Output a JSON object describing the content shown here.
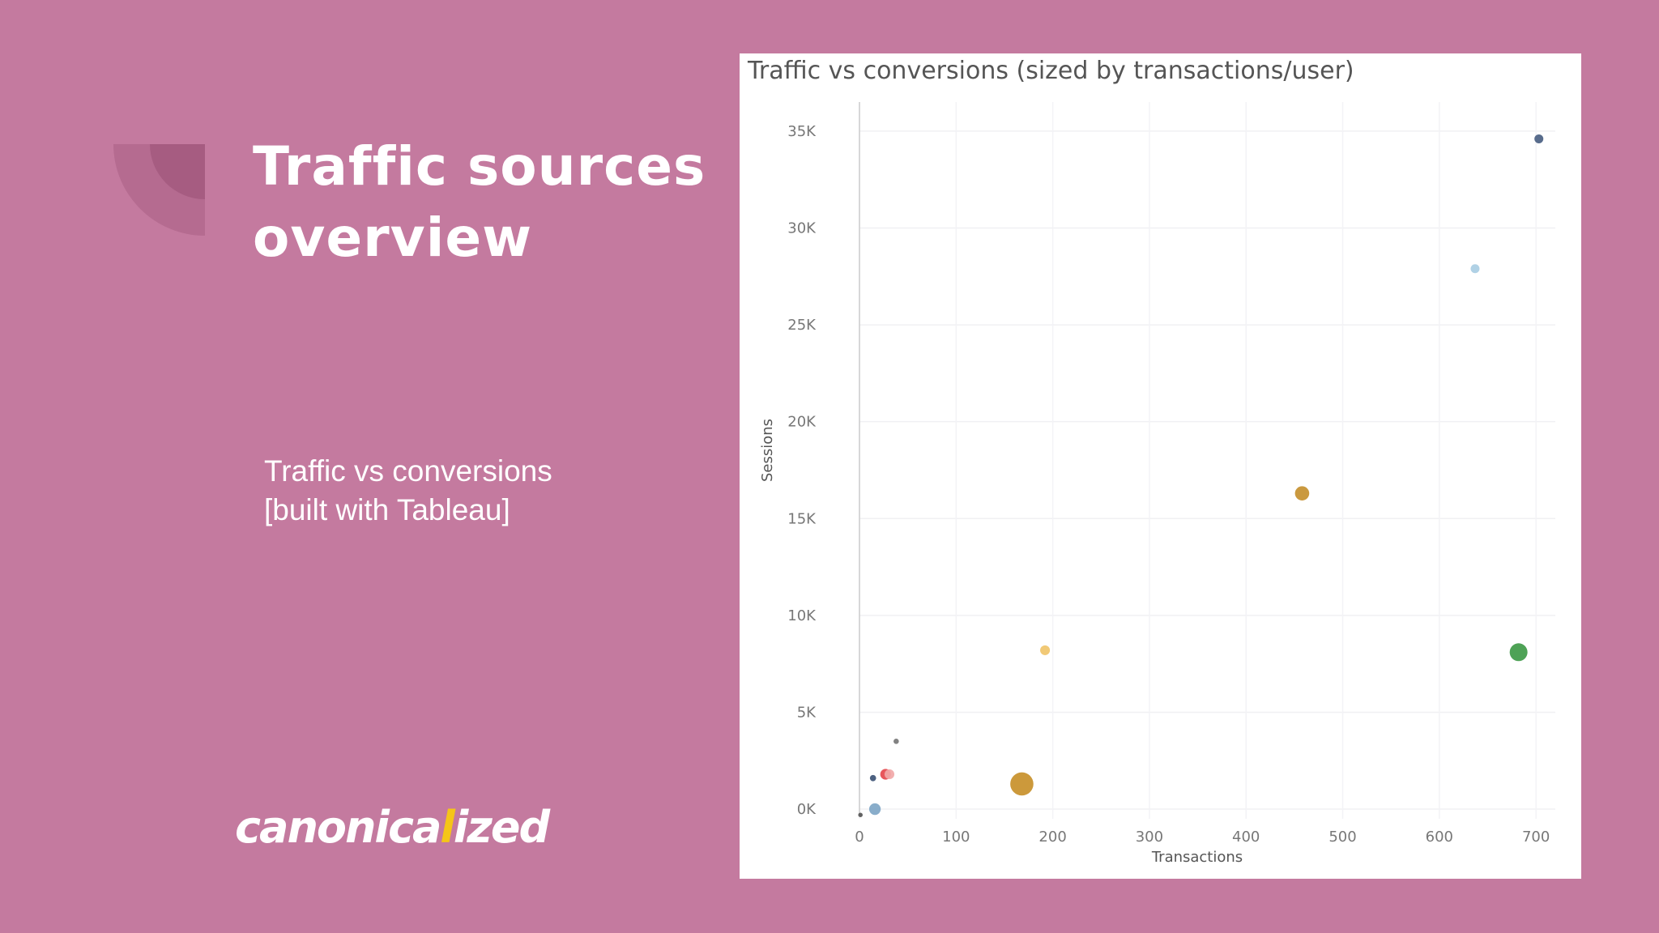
{
  "slide": {
    "title_lines": [
      "Traffic sources",
      "overview"
    ],
    "subtitle_lines": [
      "Traffic vs conversions",
      "[built with Tableau]"
    ],
    "logo": {
      "before": "canonica",
      "highlight": "l",
      "after": "ized"
    },
    "background_color": "#c47a9f",
    "logo_accent_color": "#f5c518"
  },
  "chart_data": {
    "type": "scatter",
    "title": "Traffic vs conversions (sized by transactions/user)",
    "xlabel": "Transactions",
    "ylabel": "Sessions",
    "xlim": [
      0,
      720
    ],
    "ylim": [
      -500,
      36500
    ],
    "x_ticks": [
      0,
      100,
      200,
      300,
      400,
      500,
      600,
      700
    ],
    "x_tick_labels": [
      "0",
      "100",
      "200",
      "300",
      "400",
      "500",
      "600",
      "700"
    ],
    "y_ticks": [
      0,
      5000,
      10000,
      15000,
      20000,
      25000,
      30000,
      35000
    ],
    "y_tick_labels": [
      "0K",
      "5K",
      "10K",
      "15K",
      "20K",
      "25K",
      "30K",
      "35K"
    ],
    "grid": true,
    "size_encoding": "transactions/user",
    "points": [
      {
        "x": 703,
        "y": 34600,
        "size": 1.0,
        "color": "#4a5f82"
      },
      {
        "x": 637,
        "y": 27900,
        "size": 1.0,
        "color": "#a9cde3"
      },
      {
        "x": 458,
        "y": 16300,
        "size": 1.6,
        "color": "#c6902f"
      },
      {
        "x": 682,
        "y": 8100,
        "size": 2.0,
        "color": "#3f9a48"
      },
      {
        "x": 192,
        "y": 8200,
        "size": 1.1,
        "color": "#f0c46a"
      },
      {
        "x": 168,
        "y": 1300,
        "size": 2.6,
        "color": "#c8902a"
      },
      {
        "x": 38,
        "y": 3500,
        "size": 0.6,
        "color": "#777777"
      },
      {
        "x": 27,
        "y": 1800,
        "size": 1.2,
        "color": "#e5484d"
      },
      {
        "x": 31,
        "y": 1800,
        "size": 1.1,
        "color": "#f1a8a8"
      },
      {
        "x": 14,
        "y": 1600,
        "size": 0.7,
        "color": "#3e5476"
      },
      {
        "x": 16,
        "y": 0,
        "size": 1.3,
        "color": "#7fa6c6"
      },
      {
        "x": 1,
        "y": -300,
        "size": 0.5,
        "color": "#555555"
      }
    ]
  }
}
